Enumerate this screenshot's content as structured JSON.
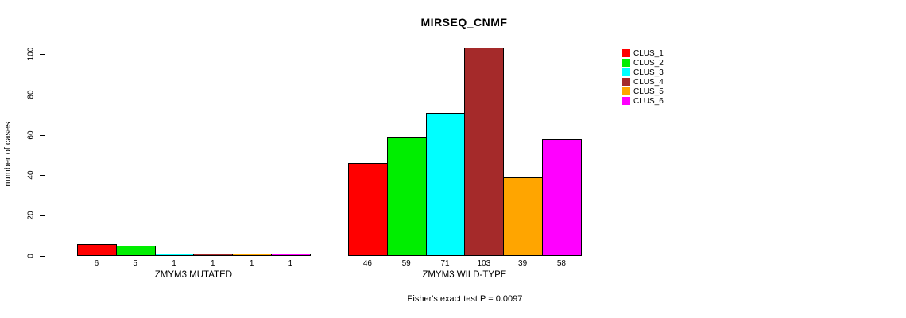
{
  "chart_data": {
    "type": "bar",
    "title": "MIRSEQ_CNMF",
    "ylabel": "number of cases",
    "xlabel": "",
    "ylim": [
      0,
      100
    ],
    "yticks": [
      0,
      20,
      40,
      60,
      80,
      100
    ],
    "grid": false,
    "legend_position": "right",
    "background_color": "#FFFFFF",
    "series": [
      {
        "name": "CLUS_1",
        "color": "#FF0000"
      },
      {
        "name": "CLUS_2",
        "color": "#00EE00"
      },
      {
        "name": "CLUS_3",
        "color": "#00FFFF"
      },
      {
        "name": "CLUS_4",
        "color": "#A52A2A"
      },
      {
        "name": "CLUS_5",
        "color": "#FFA500"
      },
      {
        "name": "CLUS_6",
        "color": "#FF00FF"
      }
    ],
    "groups": [
      {
        "label": "ZMYM3 MUTATED",
        "values": [
          6,
          5,
          1,
          1,
          1,
          1
        ]
      },
      {
        "label": "ZMYM3 WILD-TYPE",
        "values": [
          46,
          59,
          71,
          103,
          39,
          58
        ]
      }
    ],
    "annotation": "Fisher's exact test P = 0.0097"
  }
}
